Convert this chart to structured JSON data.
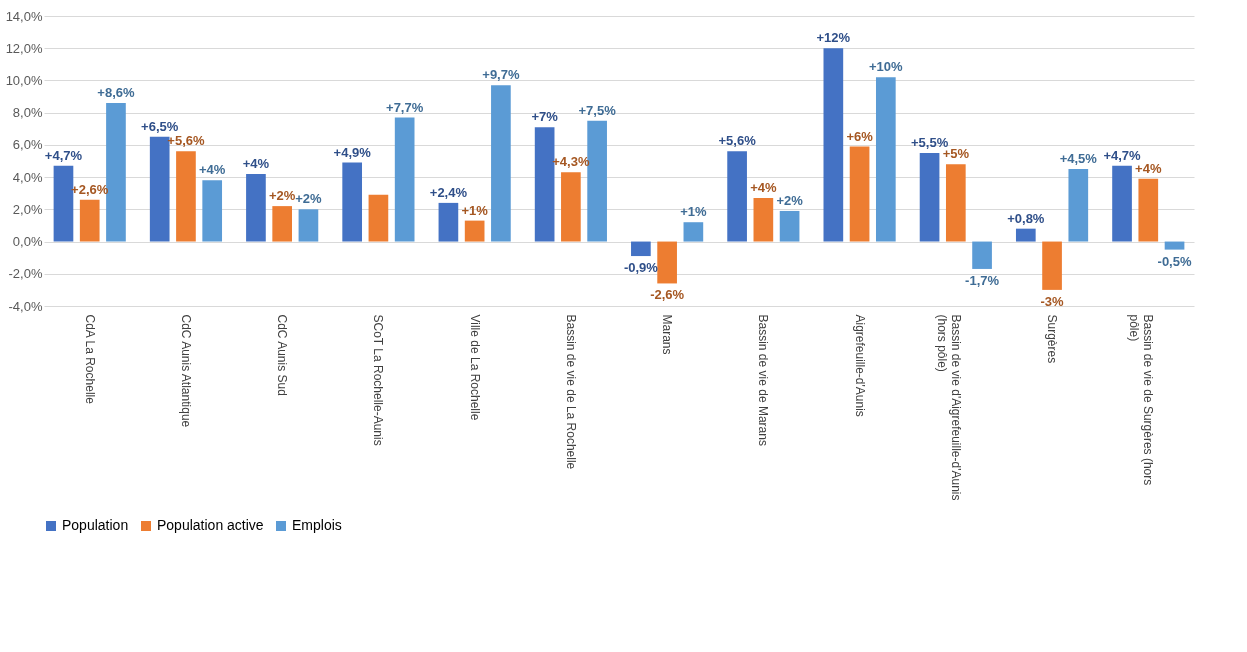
{
  "chart_data": {
    "type": "bar",
    "categories": [
      "CdA La Rochelle",
      "CdC Aunis Atlantique",
      "CdC Aunis Sud",
      "SCoT La Rochelle-Aunis",
      "Ville de La Rochelle",
      "Bassin de vie de La Rochelle",
      "Marans",
      "Bassin de vie de Marans",
      "Aigrefeuille-d'Aunis",
      "Bassin de vie d'Aigrefeuille-d'Aunis (hors pôle)",
      "Surgères",
      "Bassin de vie de Surgères (hors pôle)"
    ],
    "series": [
      {
        "name": "Population",
        "color": "#4472c4",
        "values": [
          4.7,
          6.5,
          4.2,
          4.9,
          2.4,
          7.1,
          -0.9,
          5.6,
          12.0,
          5.5,
          0.8,
          4.7
        ],
        "value_labels": [
          "+4,7%",
          "+6,5%",
          "+4%",
          "+4,9%",
          "+2,4%",
          "+7%",
          "-0,9%",
          "+5,6%",
          "+12%",
          "+5,5%",
          "+0,8%",
          "+4,7%"
        ]
      },
      {
        "name": "Population active",
        "color": "#ed7d31",
        "values": [
          2.6,
          5.6,
          2.2,
          2.9,
          1.3,
          4.3,
          -2.6,
          2.7,
          5.9,
          4.8,
          -3.0,
          3.9
        ],
        "value_labels": [
          "+2,6%",
          "+5,6%",
          "+2%",
          null,
          "+1%",
          "+4,3%",
          "-2,6%",
          null,
          "+6%",
          "+5%",
          "-3%",
          "+4%"
        ]
      },
      {
        "name": "Emplois",
        "color": "#5b9bd5",
        "values": [
          8.6,
          3.8,
          2.0,
          7.7,
          9.7,
          7.5,
          1.2,
          1.9,
          10.2,
          -1.7,
          4.5,
          -0.5
        ],
        "value_labels": [
          "+8,6%",
          "+4%",
          "+2%",
          "+7,7%",
          "+9,7%",
          "+7,5%",
          "+1%",
          "+2%",
          "+10%",
          "-1,7%",
          "+4,5%",
          "-0,5%"
        ]
      }
    ],
    "ylim": [
      -4,
      14
    ],
    "yticks": [
      {
        "value": -4,
        "label": "-4,0%"
      },
      {
        "value": -2,
        "label": "-2,0%"
      },
      {
        "value": 0,
        "label": "0,0%"
      },
      {
        "value": 2,
        "label": "2,0%"
      },
      {
        "value": 4,
        "label": "4,0%"
      },
      {
        "value": 6,
        "label": "6,0%"
      },
      {
        "value": 8,
        "label": "8,0%"
      },
      {
        "value": 10,
        "label": "10,0%"
      },
      {
        "value": 12,
        "label": "12,0%"
      },
      {
        "value": 14,
        "label": "14,0%"
      }
    ],
    "annotations": [
      {
        "text": "+4%",
        "x": "Bassin de vie de Marans",
        "y": 2.7
      }
    ],
    "grid": "y",
    "legend": "bottom"
  }
}
